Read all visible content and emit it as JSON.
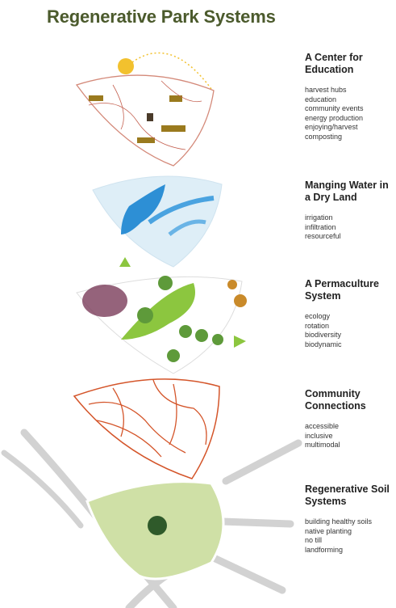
{
  "header": {
    "title": "Regenerative Park Systems"
  },
  "layers": [
    {
      "heading": "A Center for Education",
      "items": [
        "harvest hubs",
        "education",
        "community events",
        "energy production",
        "enjoying/harvest",
        "composting"
      ]
    },
    {
      "heading": "Manging Water in a Dry Land",
      "items": [
        "irrigation",
        "infiltration",
        "resourceful"
      ]
    },
    {
      "heading": "A Permaculture System",
      "items": [
        "ecology",
        "rotation",
        "biodiversity",
        "biodynamic"
      ]
    },
    {
      "heading": "Community Connections",
      "items": [
        "accessible",
        "inclusive",
        "multimodal"
      ]
    },
    {
      "heading": "Regenerative Soil Systems",
      "items": [
        "building healthy soils",
        "native planting",
        "no till",
        "landforming"
      ]
    }
  ]
}
